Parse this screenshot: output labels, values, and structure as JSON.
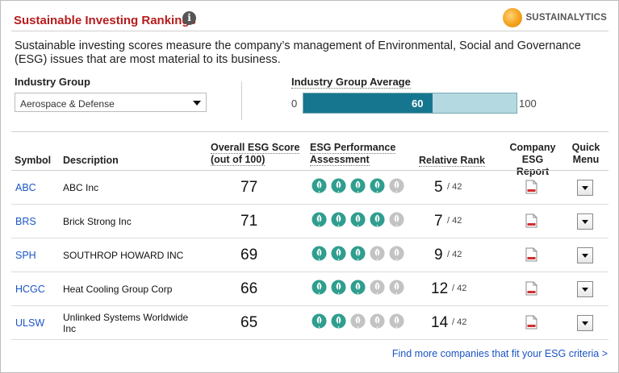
{
  "header": {
    "title": "Sustainable Investing Rankings",
    "info_icon": "i",
    "brand": "SUSTAINALYTICS"
  },
  "description": "Sustainable investing scores measure the company’s management of Environmental, Social and Governance (ESG) issues that are most material to its business.",
  "industry_group": {
    "label": "Industry Group",
    "selected": "Aerospace & Defense"
  },
  "industry_average": {
    "label": "Industry Group Average",
    "min": "0",
    "max": "100",
    "value": 60,
    "value_label": "60"
  },
  "columns": {
    "symbol": "Symbol",
    "description": "Description",
    "overall_l1": "Overall ESG Score",
    "overall_l2": "(out of 100)",
    "perf_l1": "ESG Performance",
    "perf_l2": "Assessment",
    "rank": "Relative Rank",
    "report_l1": "Company",
    "report_l2": "ESG Report",
    "menu_l1": "Quick",
    "menu_l2": "Menu"
  },
  "rows": [
    {
      "symbol": "ABC",
      "description": "ABC Inc",
      "score": "77",
      "leaves": 4,
      "rank": "5",
      "rank_of": "/ 42"
    },
    {
      "symbol": "BRS",
      "description": "Brick Strong Inc",
      "score": "71",
      "leaves": 4,
      "rank": "7",
      "rank_of": "/ 42"
    },
    {
      "symbol": "SPH",
      "description": "SOUTHROP HOWARD INC",
      "score": "69",
      "leaves": 3,
      "rank": "9",
      "rank_of": "/ 42"
    },
    {
      "symbol": "HCGC",
      "description": "Heat Cooling Group Corp",
      "score": "66",
      "leaves": 3,
      "rank": "12",
      "rank_of": "/ 42"
    },
    {
      "symbol": "ULSW",
      "description": "Unlinked Systems Worldwide Inc",
      "score": "65",
      "leaves": 2,
      "rank": "14",
      "rank_of": "/ 42"
    }
  ],
  "colors": {
    "leaf_on": "#2f9e8e",
    "leaf_off": "#c3c3c3",
    "bar_fill": "#17768f",
    "bar_track": "#b5d9e0",
    "link": "#1a55c4",
    "title": "#b71c1c"
  },
  "footer_link": "Find more companies that fit your ESG criteria >"
}
